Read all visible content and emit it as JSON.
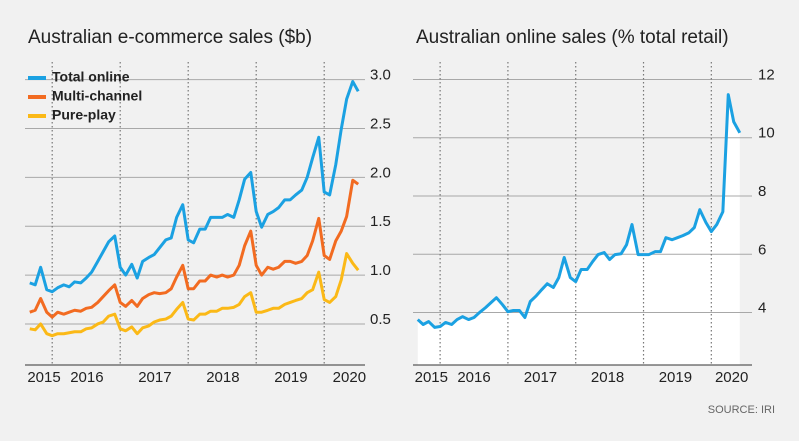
{
  "source": "SOURCE: IRI",
  "chart_data": [
    {
      "type": "line",
      "title": "Australian e-commerce sales ($b)",
      "legend": "upper left",
      "x": [
        2015.67,
        2015.75,
        2015.83,
        2015.92,
        2016.0,
        2016.08,
        2016.17,
        2016.25,
        2016.33,
        2016.42,
        2016.5,
        2016.58,
        2016.67,
        2016.75,
        2016.83,
        2016.92,
        2017.0,
        2017.08,
        2017.17,
        2017.25,
        2017.33,
        2017.42,
        2017.5,
        2017.58,
        2017.67,
        2017.75,
        2017.83,
        2017.92,
        2018.0,
        2018.08,
        2018.17,
        2018.25,
        2018.33,
        2018.42,
        2018.5,
        2018.58,
        2018.67,
        2018.75,
        2018.83,
        2018.92,
        2019.0,
        2019.08,
        2019.17,
        2019.25,
        2019.33,
        2019.42,
        2019.5,
        2019.58,
        2019.67,
        2019.75,
        2019.83,
        2019.92,
        2020.0,
        2020.08,
        2020.17,
        2020.25,
        2020.33,
        2020.42,
        2020.5
      ],
      "series": [
        {
          "name": "Total online",
          "color": "#1ba1e2",
          "values": [
            0.92,
            0.9,
            1.08,
            0.85,
            0.83,
            0.87,
            0.9,
            0.88,
            0.93,
            0.92,
            0.97,
            1.03,
            1.14,
            1.24,
            1.34,
            1.4,
            1.08,
            1.0,
            1.11,
            0.97,
            1.14,
            1.18,
            1.21,
            1.28,
            1.36,
            1.38,
            1.59,
            1.72,
            1.36,
            1.33,
            1.47,
            1.47,
            1.59,
            1.59,
            1.59,
            1.62,
            1.59,
            1.77,
            1.98,
            2.05,
            1.65,
            1.49,
            1.62,
            1.65,
            1.69,
            1.77,
            1.77,
            1.82,
            1.87,
            2.0,
            2.2,
            2.41,
            1.85,
            1.82,
            2.13,
            2.49,
            2.8,
            2.98,
            2.88
          ]
        },
        {
          "name": "Multi-channel",
          "color": "#f26b21",
          "values": [
            0.62,
            0.64,
            0.76,
            0.62,
            0.57,
            0.62,
            0.6,
            0.62,
            0.64,
            0.63,
            0.66,
            0.67,
            0.72,
            0.78,
            0.84,
            0.9,
            0.72,
            0.68,
            0.74,
            0.68,
            0.76,
            0.8,
            0.82,
            0.81,
            0.82,
            0.86,
            0.98,
            1.1,
            0.86,
            0.86,
            0.94,
            0.94,
            1.0,
            0.98,
            1.0,
            0.98,
            1.0,
            1.1,
            1.3,
            1.45,
            1.1,
            1.0,
            1.08,
            1.06,
            1.08,
            1.14,
            1.14,
            1.12,
            1.14,
            1.2,
            1.35,
            1.58,
            1.2,
            1.16,
            1.35,
            1.45,
            1.6,
            1.97,
            1.93
          ]
        },
        {
          "name": "Pure-play",
          "color": "#fbb917",
          "values": [
            0.45,
            0.44,
            0.5,
            0.4,
            0.38,
            0.4,
            0.4,
            0.41,
            0.42,
            0.42,
            0.45,
            0.46,
            0.5,
            0.52,
            0.58,
            0.6,
            0.45,
            0.43,
            0.47,
            0.4,
            0.46,
            0.48,
            0.52,
            0.54,
            0.55,
            0.58,
            0.65,
            0.72,
            0.55,
            0.54,
            0.6,
            0.6,
            0.63,
            0.63,
            0.66,
            0.66,
            0.67,
            0.7,
            0.78,
            0.82,
            0.62,
            0.62,
            0.64,
            0.66,
            0.66,
            0.7,
            0.72,
            0.74,
            0.76,
            0.82,
            0.85,
            1.03,
            0.75,
            0.72,
            0.78,
            0.95,
            1.22,
            1.12,
            1.05
          ]
        }
      ],
      "xlim": [
        2015.6,
        2020.6
      ],
      "xticks": [
        {
          "value": 2015.88,
          "label": "2015"
        },
        {
          "value": 2016.51,
          "label": "2016"
        },
        {
          "value": 2017.51,
          "label": "2017"
        },
        {
          "value": 2018.51,
          "label": "2018"
        },
        {
          "value": 2019.51,
          "label": "2019"
        },
        {
          "value": 2020.37,
          "label": "2020"
        }
      ],
      "year_lines": [
        2016,
        2017,
        2018,
        2019,
        2020
      ],
      "ylim": [
        0.08,
        3.18
      ],
      "yticks": [
        0.5,
        {
          "value": 1,
          "label": "1.0"
        },
        1.5,
        {
          "value": 2,
          "label": "2.0"
        },
        2.5,
        {
          "value": 3,
          "label": "3.0"
        }
      ],
      "grid": true
    },
    {
      "type": "area",
      "title": "Australian online sales (% total retail)",
      "x": [
        2015.67,
        2015.75,
        2015.83,
        2015.92,
        2016.0,
        2016.08,
        2016.17,
        2016.25,
        2016.33,
        2016.42,
        2016.5,
        2016.58,
        2016.67,
        2016.75,
        2016.83,
        2016.92,
        2017.0,
        2017.08,
        2017.17,
        2017.25,
        2017.33,
        2017.42,
        2017.5,
        2017.58,
        2017.67,
        2017.75,
        2017.83,
        2017.92,
        2018.0,
        2018.08,
        2018.17,
        2018.25,
        2018.33,
        2018.42,
        2018.5,
        2018.58,
        2018.67,
        2018.75,
        2018.83,
        2018.92,
        2019.0,
        2019.08,
        2019.17,
        2019.25,
        2019.33,
        2019.42,
        2019.5,
        2019.58,
        2019.67,
        2019.75,
        2019.83,
        2019.92,
        2020.0,
        2020.08,
        2020.17,
        2020.25,
        2020.33,
        2020.42
      ],
      "series": [
        {
          "color": "#1ba1e2",
          "fill": "#ffffff",
          "values": [
            3.76,
            3.59,
            3.69,
            3.49,
            3.52,
            3.66,
            3.59,
            3.76,
            3.86,
            3.76,
            3.83,
            4.0,
            4.17,
            4.34,
            4.51,
            4.27,
            4.03,
            4.07,
            4.07,
            3.83,
            4.38,
            4.58,
            4.79,
            4.99,
            4.86,
            5.2,
            5.89,
            5.2,
            5.06,
            5.48,
            5.48,
            5.75,
            5.99,
            6.06,
            5.82,
            5.99,
            6.02,
            6.33,
            7.02,
            5.99,
            5.99,
            5.99,
            6.09,
            6.09,
            6.57,
            6.5,
            6.57,
            6.64,
            6.74,
            6.92,
            7.53,
            7.09,
            6.78,
            7.02,
            7.46,
            11.48,
            10.55,
            10.17
          ]
        }
      ],
      "xlim": [
        2015.6,
        2020.6
      ],
      "xticks": [
        {
          "value": 2015.87,
          "label": "2015"
        },
        {
          "value": 2016.5,
          "label": "2016"
        },
        {
          "value": 2017.48,
          "label": "2017"
        },
        {
          "value": 2018.47,
          "label": "2018"
        },
        {
          "value": 2019.47,
          "label": "2019"
        },
        {
          "value": 2020.3,
          "label": "2020"
        }
      ],
      "year_lines": [
        2016,
        2017,
        2018,
        2019,
        2020
      ],
      "ylim": [
        2.2,
        12.6
      ],
      "yticks": [
        4,
        6,
        8,
        10,
        12
      ],
      "grid": true
    }
  ]
}
